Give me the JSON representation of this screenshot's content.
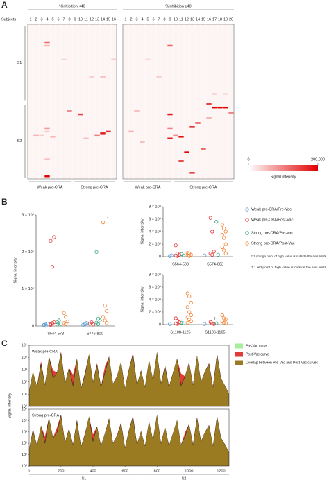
{
  "chart_data": [
    {
      "type": "heatmap",
      "panel": "A",
      "subject_label": "Subjects",
      "ylim": [
        0,
        90
      ],
      "row_groups": [
        {
          "label": "S1",
          "range": [
            0,
            45
          ]
        },
        {
          "label": "S2",
          "range": [
            46,
            90
          ]
        }
      ],
      "groups": [
        {
          "title": "%inhibition <40",
          "subjects": [
            1,
            2,
            3,
            4,
            5,
            6,
            7,
            8,
            9,
            10,
            11,
            12,
            13,
            14,
            15,
            16
          ],
          "subgroups": [
            {
              "label": "Weak pre-CRA",
              "range": [
                1,
                8
              ]
            },
            {
              "label": "Strong pre-CRA",
              "range": [
                9,
                16
              ]
            }
          ],
          "cells": [
            [
              4,
              10,
              120000
            ],
            [
              4,
              12,
              60000
            ],
            [
              4,
              60,
              80000
            ],
            [
              4,
              62,
              40000
            ],
            [
              4,
              88,
              200000
            ],
            [
              2,
              64,
              60000
            ],
            [
              3,
              64,
              40000
            ],
            [
              8,
              50,
              90000
            ],
            [
              10,
              52,
              150000
            ],
            [
              13,
              64,
              100000
            ],
            [
              14,
              63,
              180000
            ],
            [
              15,
              62,
              160000
            ],
            [
              14,
              30,
              50000
            ],
            [
              12,
              30,
              40000
            ],
            [
              5,
              65,
              60000
            ],
            [
              7,
              20,
              30000
            ],
            [
              16,
              20,
              40000
            ],
            [
              4,
              78,
              50000
            ],
            [
              11,
              66,
              50000
            ]
          ]
        },
        {
          "title": "%inhibition ≥40",
          "subjects": [
            1,
            2,
            3,
            4,
            5,
            6,
            7,
            8,
            9,
            10,
            11,
            12,
            13,
            14,
            15,
            16,
            17,
            18,
            19,
            20
          ],
          "subgroups": [
            {
              "label": "Weak pre-CRA",
              "range": [
                1,
                9
              ]
            },
            {
              "label": "Strong pre-CRA",
              "range": [
                10,
                20
              ]
            }
          ],
          "cells": [
            [
              9,
              12,
              120000
            ],
            [
              9,
              52,
              180000
            ],
            [
              9,
              60,
              100000
            ],
            [
              16,
              46,
              150000
            ],
            [
              17,
              48,
              200000
            ],
            [
              18,
              48,
              200000
            ],
            [
              19,
              48,
              200000
            ],
            [
              20,
              51,
              100000
            ],
            [
              16,
              54,
              60000
            ],
            [
              14,
              57,
              140000
            ],
            [
              13,
              59,
              160000
            ],
            [
              11,
              65,
              200000
            ],
            [
              9,
              66,
              180000
            ],
            [
              10,
              64,
              90000
            ],
            [
              12,
              74,
              200000
            ],
            [
              11,
              79,
              140000
            ],
            [
              15,
              72,
              120000
            ],
            [
              13,
              86,
              160000
            ],
            [
              2,
              62,
              60000
            ],
            [
              4,
              68,
              50000
            ],
            [
              7,
              30,
              40000
            ],
            [
              17,
              40,
              40000
            ],
            [
              19,
              40,
              30000
            ],
            [
              5,
              20,
              30000
            ],
            [
              3,
              50,
              50000
            ]
          ]
        }
      ],
      "colorbar": {
        "label": "Signal intensity",
        "zlim": [
          0,
          200000
        ],
        "ticks": [
          0,
          {
            "value": 200000,
            "label": "200,000"
          }
        ],
        "color": "#e00000"
      }
    },
    {
      "type": "strip",
      "panel": "B",
      "series": [
        {
          "name": "Weak pre-CRA/Pre-Vac",
          "color": "#5b9bd5"
        },
        {
          "name": "Weak pre-CRA/Post-Vac",
          "color": "#e03030"
        },
        {
          "name": "Strong pre-CRA/Pre-Vac",
          "color": "#2ca07a"
        },
        {
          "name": "Strong pre-CRA/Post-Vac",
          "color": "#f08030"
        }
      ],
      "notes": [
        "* 1 orange point of high value is outside the axis limits",
        "† 1 red point of high value is outside the axis limits"
      ],
      "plots": [
        {
          "ylabel": "Signal intensity",
          "ylim": [
            0,
            3000000
          ],
          "yticks": [
            0,
            {
              "value": 1000000,
              "label": "1 × 10⁶"
            },
            {
              "value": 2000000,
              "label": "2 × 10⁶"
            },
            {
              "value": 3000000,
              "label": "3 × 10⁶"
            }
          ],
          "categories": [
            "S544-573",
            "S776-800"
          ],
          "values": [
            [
              [
                20000,
                40000,
                60000,
                30000,
                10000
              ],
              [
                30000,
                50000,
                80000
              ]
            ],
            [
              [
                50000,
                80000,
                2400000,
                2300000,
                1600000,
                100000,
                30000
              ],
              [
                60000,
                100000,
                40000
              ]
            ],
            [
              [
                100000,
                150000,
                60000,
                40000
              ],
              [
                2000000,
                200000,
                150000,
                90000,
                50000
              ]
            ],
            [
              [
                350000,
                250000,
                120000,
                80000,
                50000
              ],
              [
                2800000,
                550000,
                400000,
                250000,
                150000,
                80000
              ]
            ]
          ],
          "outlier": {
            "mark": "*",
            "category": 1,
            "series": 3
          }
        },
        {
          "ylabel": "Signal intensity",
          "ylim": [
            0,
            80000
          ],
          "yticks": [
            0,
            {
              "value": 20000,
              "label": "2 × 10⁴"
            },
            {
              "value": 40000,
              "label": "4 × 10⁴"
            },
            {
              "value": 60000,
              "label": "6 × 10⁴"
            },
            {
              "value": 80000,
              "label": "8 × 10⁴"
            }
          ],
          "categories": [
            "S564-583",
            "S574-603"
          ],
          "values": [
            [
              [
                1000,
                2000
              ],
              [
                2000
              ]
            ],
            [
              [
                18000,
                5000,
                3000,
                2000,
                1000
              ],
              [
                62000,
                40000,
                8000,
                5000,
                3000
              ]
            ],
            [
              [
                4000,
                2000
              ],
              [
                56000,
                3000
              ]
            ],
            [
              [
                6000,
                5000,
                3000,
                2000,
                1000
              ],
              [
                51000,
                45000,
                40000,
                35000,
                30000,
                20000,
                15000,
                10000,
                5000
              ]
            ]
          ]
        },
        {
          "ylabel": "Signal intensity",
          "ylim": [
            0,
            80000
          ],
          "yticks": [
            0,
            {
              "value": 20000,
              "label": "2 × 10⁴"
            },
            {
              "value": 40000,
              "label": "4 × 10⁴"
            },
            {
              "value": 60000,
              "label": "6 × 10⁴"
            },
            {
              "value": 80000,
              "label": "8 × 10⁴"
            }
          ],
          "categories": [
            "S1108-1125",
            "S1136-1165"
          ],
          "values": [
            [
              [
                1000
              ],
              [
                1000
              ]
            ],
            [
              [
                10000,
                6000,
                4000,
                2000,
                1000
              ],
              [
                4000,
                2000,
                1000
              ]
            ],
            [
              [
                3000,
                2000
              ],
              [
                2000
              ]
            ],
            [
              [
                50000,
                45000,
                35000,
                28000,
                20000,
                15000,
                12000,
                8000,
                5000,
                3000
              ],
              [
                15000,
                10000,
                8000,
                5000,
                3000,
                2000
              ]
            ]
          ],
          "outlier": {
            "mark": "†",
            "category": 1,
            "series": 1
          }
        }
      ]
    },
    {
      "type": "area",
      "panel": "C",
      "ylabel": "Signal intensity",
      "ylog": true,
      "xlim": [
        1,
        1250
      ],
      "xticks": [
        1,
        200,
        400,
        600,
        800,
        1000,
        1200
      ],
      "ylim": [
        1,
        100000
      ],
      "yticks": [
        {
          "value": 1,
          "label": "10⁰"
        },
        {
          "value": 10,
          "label": "10¹"
        },
        {
          "value": 100,
          "label": "10²"
        },
        {
          "value": 1000,
          "label": "10³"
        },
        {
          "value": 10000,
          "label": "10⁴"
        },
        {
          "value": 100000,
          "label": "10⁵"
        }
      ],
      "series": [
        {
          "name": "Pre-Vac curve",
          "color": "#a6ee9c"
        },
        {
          "name": "Post-Vac curve",
          "color": "#e33a3a"
        }
      ],
      "overlap": {
        "name": "Overlap between Pre-Vac and Post-Vac curves",
        "color": "#9a7b22"
      },
      "domains": [
        {
          "label": "S1",
          "range": [
            1,
            685
          ]
        },
        {
          "label": "S2",
          "range": [
            686,
            1250
          ]
        }
      ],
      "x": [
        1,
        25,
        50,
        75,
        100,
        125,
        150,
        175,
        200,
        225,
        250,
        275,
        300,
        325,
        350,
        375,
        400,
        425,
        450,
        475,
        500,
        525,
        550,
        575,
        600,
        625,
        650,
        675,
        700,
        725,
        750,
        775,
        800,
        825,
        850,
        875,
        900,
        925,
        950,
        975,
        1000,
        1025,
        1050,
        1075,
        1100,
        1125,
        1150,
        1175,
        1200,
        1225,
        1250
      ],
      "plots": [
        {
          "label": "Weak pre-CRA",
          "values": [
            [
              20,
              800,
              40,
              3000,
              60,
              15000,
              200,
              600,
              25000,
              80,
              1500,
              50,
              8000,
              30,
              400,
              20000,
              100,
              2500,
              40,
              600,
              12000,
              70,
              300,
              5000,
              30,
              1200,
              18000,
              60,
              900,
              40,
              7000,
              150,
              30000,
              80,
              2000,
              40,
              600,
              9000,
              50,
              300,
              4000,
              60,
              15000,
              100,
              800,
              3000,
              40,
              20000,
              200,
              50,
              10
            ],
            [
              20,
              700,
              40,
              5000,
              60,
              12000,
              900,
              600,
              30000,
              80,
              1500,
              400,
              8000,
              30,
              600,
              18000,
              100,
              3500,
              40,
              2000,
              12000,
              70,
              300,
              4500,
              30,
              1200,
              25000,
              60,
              900,
              40,
              6000,
              150,
              28000,
              80,
              2500,
              40,
              600,
              8000,
              500,
              300,
              4000,
              60,
              14000,
              100,
              800,
              3500,
              40,
              22000,
              200,
              50,
              10
            ]
          ]
        },
        {
          "label": "Strong pre-CRA",
          "values": [
            [
              30,
              1500,
              60,
              4000,
              100,
              20000,
              300,
              900,
              30000,
              120,
              2000,
              80,
              10000,
              50,
              700,
              25000,
              150,
              3000,
              60,
              800,
              15000,
              100,
              500,
              6000,
              40,
              1500,
              20000,
              80,
              1200,
              60,
              9000,
              200,
              35000,
              100,
              3000,
              60,
              800,
              12000,
              70,
              400,
              5000,
              80,
              18000,
              150,
              1000,
              4000,
              60,
              25000,
              300,
              80,
              15
            ],
            [
              30,
              1800,
              60,
              3500,
              400,
              18000,
              300,
              2500,
              35000,
              120,
              2000,
              80,
              12000,
              50,
              700,
              22000,
              600,
              3000,
              60,
              800,
              16000,
              100,
              500,
              7000,
              40,
              1500,
              28000,
              80,
              1200,
              60,
              8000,
              200,
              32000,
              100,
              2800,
              60,
              800,
              11000,
              70,
              900,
              5000,
              80,
              20000,
              150,
              1000,
              4000,
              60,
              26000,
              300,
              80,
              15
            ]
          ]
        }
      ]
    }
  ]
}
